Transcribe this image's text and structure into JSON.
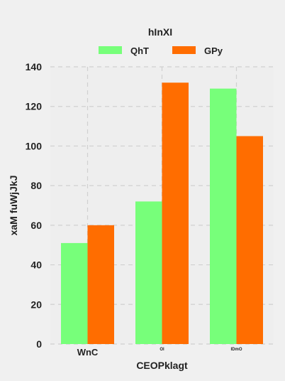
{
  "chart_data": {
    "type": "bar",
    "categories": [
      "WnC",
      "Ol",
      "IDmO"
    ],
    "series": [
      {
        "name": "QhT",
        "values": [
          51,
          72,
          129
        ],
        "color": "#77ff7a"
      },
      {
        "name": "GPy",
        "values": [
          60,
          132,
          105
        ],
        "color": "#ff6d00"
      }
    ],
    "legend": {
      "title": "hInXI",
      "placement": "top-center"
    },
    "xlabel": "CEOPklagt",
    "ylabel": "xaM fuWjJkJ",
    "ylim": [
      0,
      140
    ],
    "yticks": [
      0,
      20,
      40,
      60,
      80,
      100,
      120,
      140
    ],
    "grid": true
  },
  "colors": {
    "background": "#f0f0f0",
    "plot_background": "#eeeeee",
    "grid": "#d0d0d0",
    "text": "#222222"
  }
}
